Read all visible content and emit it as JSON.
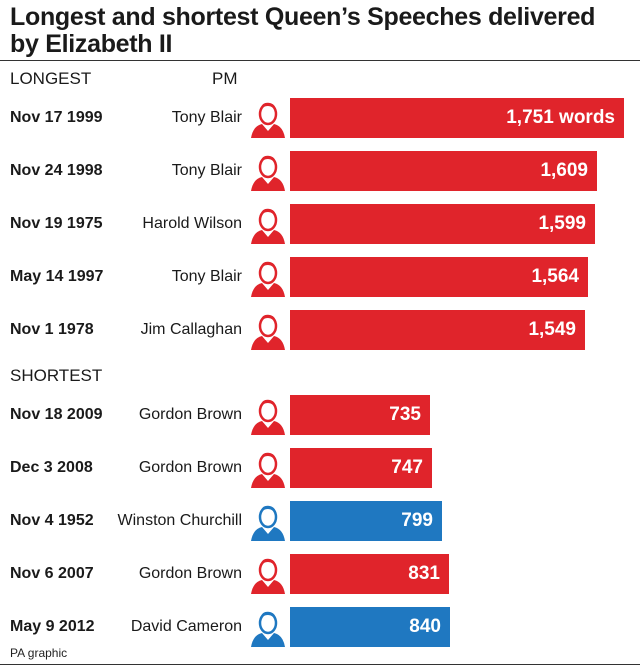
{
  "title": "Longest and shortest Queen’s Speeches delivered by Elizabeth II",
  "source": "PA graphic",
  "colors": {
    "labour": "#e0242b",
    "conservative": "#1f78c1",
    "text": "#1a1a1a"
  },
  "chart_data": {
    "type": "bar",
    "orientation": "horizontal",
    "unit": "words",
    "pm_column_header": "PM",
    "groups": [
      {
        "heading": "LONGEST",
        "rows": [
          {
            "date": "Nov 17 1999",
            "pm": "Tony Blair",
            "value": 1751,
            "label": "1,751 words",
            "party": "labour",
            "portrait": "tony-blair-portrait-icon"
          },
          {
            "date": "Nov 24 1998",
            "pm": "Tony Blair",
            "value": 1609,
            "label": "1,609",
            "party": "labour",
            "portrait": "tony-blair-portrait-icon"
          },
          {
            "date": "Nov 19 1975",
            "pm": "Harold Wilson",
            "value": 1599,
            "label": "1,599",
            "party": "labour",
            "portrait": "harold-wilson-portrait-icon"
          },
          {
            "date": "May 14 1997",
            "pm": "Tony Blair",
            "value": 1564,
            "label": "1,564",
            "party": "labour",
            "portrait": "tony-blair-portrait-icon"
          },
          {
            "date": "Nov 1 1978",
            "pm": "Jim Callaghan",
            "value": 1549,
            "label": "1,549",
            "party": "labour",
            "portrait": "jim-callaghan-portrait-icon"
          }
        ]
      },
      {
        "heading": "SHORTEST",
        "rows": [
          {
            "date": "Nov 18 2009",
            "pm": "Gordon Brown",
            "value": 735,
            "label": "735",
            "party": "labour",
            "portrait": "gordon-brown-portrait-icon"
          },
          {
            "date": "Dec 3 2008",
            "pm": "Gordon Brown",
            "value": 747,
            "label": "747",
            "party": "labour",
            "portrait": "gordon-brown-portrait-icon"
          },
          {
            "date": "Nov 4 1952",
            "pm": "Winston Churchill",
            "value": 799,
            "label": "799",
            "party": "conservative",
            "portrait": "winston-churchill-portrait-icon"
          },
          {
            "date": "Nov 6 2007",
            "pm": "Gordon Brown",
            "value": 831,
            "label": "831",
            "party": "labour",
            "portrait": "gordon-brown-portrait-icon"
          },
          {
            "date": "May 9 2012",
            "pm": "David Cameron",
            "value": 840,
            "label": "840",
            "party": "conservative",
            "portrait": "david-cameron-portrait-icon"
          }
        ]
      }
    ]
  }
}
